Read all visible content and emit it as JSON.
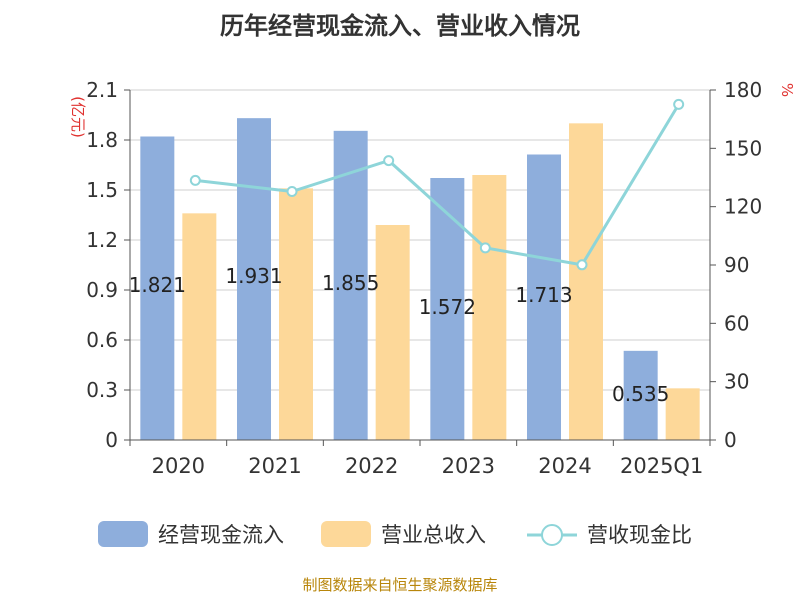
{
  "chart_data": {
    "type": "bar",
    "title": "历年经营现金流入、营业收入情况",
    "categories": [
      "2020",
      "2021",
      "2022",
      "2023",
      "2024",
      "2025Q1"
    ],
    "series": [
      {
        "name": "经营现金流入",
        "type": "bar",
        "axis": "left",
        "color": "#8eaedc",
        "values": [
          1.821,
          1.931,
          1.855,
          1.572,
          1.713,
          0.535
        ]
      },
      {
        "name": "营业总收入",
        "type": "bar",
        "axis": "left",
        "color": "#fdd899",
        "values": [
          1.36,
          1.51,
          1.29,
          1.59,
          1.9,
          0.31
        ]
      },
      {
        "name": "营收现金比",
        "type": "line",
        "axis": "right",
        "color": "#8ed5d9",
        "values": [
          133.5,
          127.8,
          143.7,
          98.8,
          90.1,
          172.6
        ]
      }
    ],
    "data_labels": [
      "1.821",
      "1.931",
      "1.855",
      "1.572",
      "1.713",
      "0.535"
    ],
    "y_left": {
      "unit": "(亿元)",
      "ylim": [
        0,
        2.1
      ],
      "ticks": [
        "0",
        "0.3",
        "0.6",
        "0.9",
        "1.2",
        "1.5",
        "1.8",
        "2.1"
      ]
    },
    "y_right": {
      "unit": "%",
      "ylim": [
        0,
        180
      ],
      "ticks": [
        "0",
        "30",
        "60",
        "90",
        "120",
        "150",
        "180"
      ]
    },
    "grid": true,
    "legend_position": "bottom"
  },
  "source": "制图数据来自恒生聚源数据库"
}
